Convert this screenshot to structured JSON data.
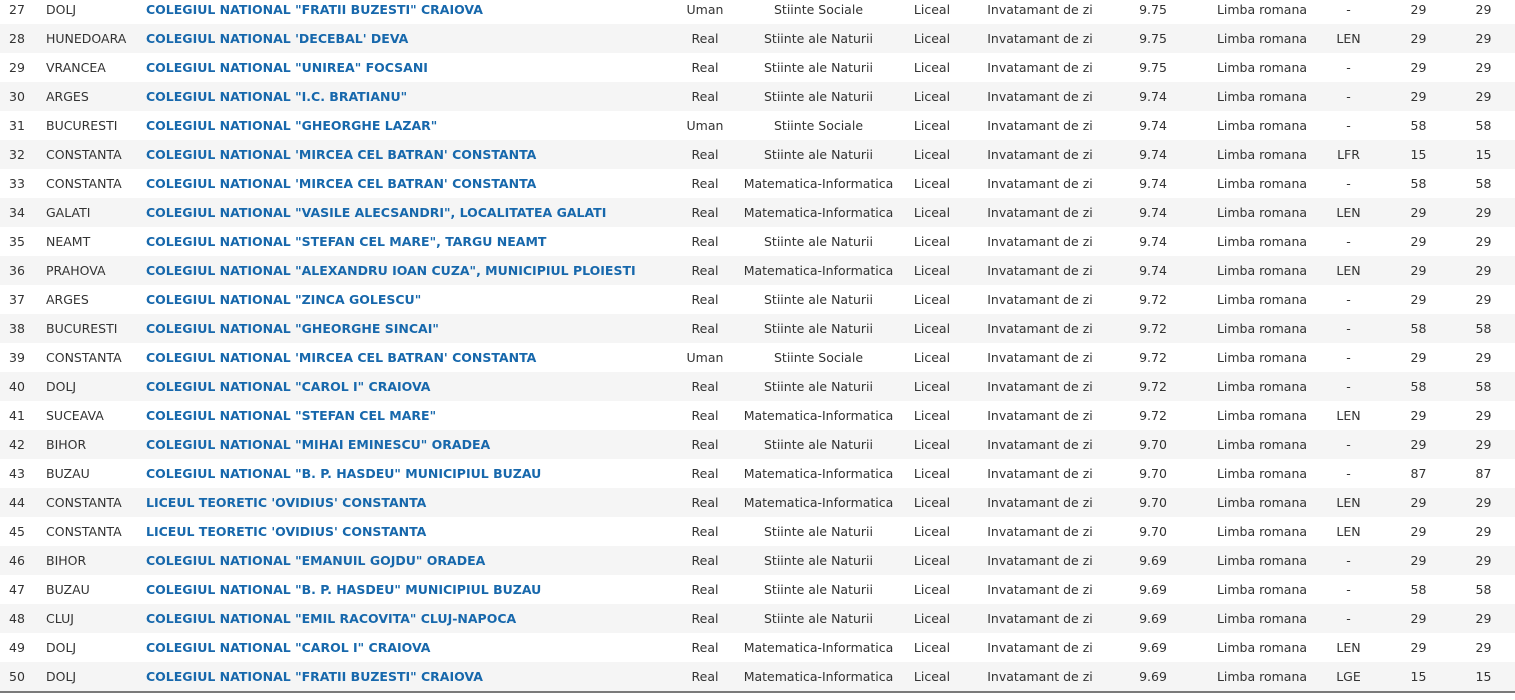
{
  "colors": {
    "link_blue": "#1768ac",
    "row_stripe": "#f5f5f5",
    "body_text": "#333333",
    "bottom_border": "#7a7a7a"
  },
  "table": {
    "rows": [
      {
        "rank": "27",
        "county": "DOLJ",
        "school": "COLEGIUL NATIONAL \"FRATII BUZESTI\" CRAIOVA",
        "profile": "Uman",
        "specialization": "Stiinte Sociale",
        "level": "Liceal",
        "form": "Invatamant de zi",
        "grade": "9.75",
        "language": "Limba romana",
        "bilingual": "-",
        "seats": "29",
        "admitted": "29"
      },
      {
        "rank": "28",
        "county": "HUNEDOARA",
        "school": "COLEGIUL NATIONAL 'DECEBAL' DEVA",
        "profile": "Real",
        "specialization": "Stiinte ale Naturii",
        "level": "Liceal",
        "form": "Invatamant de zi",
        "grade": "9.75",
        "language": "Limba romana",
        "bilingual": "LEN",
        "seats": "29",
        "admitted": "29"
      },
      {
        "rank": "29",
        "county": "VRANCEA",
        "school": "COLEGIUL NATIONAL \"UNIREA\" FOCSANI",
        "profile": "Real",
        "specialization": "Stiinte ale Naturii",
        "level": "Liceal",
        "form": "Invatamant de zi",
        "grade": "9.75",
        "language": "Limba romana",
        "bilingual": "-",
        "seats": "29",
        "admitted": "29"
      },
      {
        "rank": "30",
        "county": "ARGES",
        "school": "COLEGIUL NATIONAL \"I.C. BRATIANU\"",
        "profile": "Real",
        "specialization": "Stiinte ale Naturii",
        "level": "Liceal",
        "form": "Invatamant de zi",
        "grade": "9.74",
        "language": "Limba romana",
        "bilingual": "-",
        "seats": "29",
        "admitted": "29"
      },
      {
        "rank": "31",
        "county": "BUCURESTI",
        "school": "COLEGIUL NATIONAL \"GHEORGHE LAZAR\"",
        "profile": "Uman",
        "specialization": "Stiinte Sociale",
        "level": "Liceal",
        "form": "Invatamant de zi",
        "grade": "9.74",
        "language": "Limba romana",
        "bilingual": "-",
        "seats": "58",
        "admitted": "58"
      },
      {
        "rank": "32",
        "county": "CONSTANTA",
        "school": "COLEGIUL NATIONAL 'MIRCEA CEL BATRAN' CONSTANTA",
        "profile": "Real",
        "specialization": "Stiinte ale Naturii",
        "level": "Liceal",
        "form": "Invatamant de zi",
        "grade": "9.74",
        "language": "Limba romana",
        "bilingual": "LFR",
        "seats": "15",
        "admitted": "15"
      },
      {
        "rank": "33",
        "county": "CONSTANTA",
        "school": "COLEGIUL NATIONAL 'MIRCEA CEL BATRAN' CONSTANTA",
        "profile": "Real",
        "specialization": "Matematica-Informatica",
        "level": "Liceal",
        "form": "Invatamant de zi",
        "grade": "9.74",
        "language": "Limba romana",
        "bilingual": "-",
        "seats": "58",
        "admitted": "58"
      },
      {
        "rank": "34",
        "county": "GALATI",
        "school": "COLEGIUL NATIONAL \"VASILE ALECSANDRI\", LOCALITATEA GALATI",
        "profile": "Real",
        "specialization": "Matematica-Informatica",
        "level": "Liceal",
        "form": "Invatamant de zi",
        "grade": "9.74",
        "language": "Limba romana",
        "bilingual": "LEN",
        "seats": "29",
        "admitted": "29"
      },
      {
        "rank": "35",
        "county": "NEAMT",
        "school": "COLEGIUL NATIONAL \"STEFAN CEL MARE\", TARGU NEAMT",
        "profile": "Real",
        "specialization": "Stiinte ale Naturii",
        "level": "Liceal",
        "form": "Invatamant de zi",
        "grade": "9.74",
        "language": "Limba romana",
        "bilingual": "-",
        "seats": "29",
        "admitted": "29"
      },
      {
        "rank": "36",
        "county": "PRAHOVA",
        "school": "COLEGIUL NATIONAL \"ALEXANDRU IOAN CUZA\", MUNICIPIUL PLOIESTI",
        "profile": "Real",
        "specialization": "Matematica-Informatica",
        "level": "Liceal",
        "form": "Invatamant de zi",
        "grade": "9.74",
        "language": "Limba romana",
        "bilingual": "LEN",
        "seats": "29",
        "admitted": "29"
      },
      {
        "rank": "37",
        "county": "ARGES",
        "school": "COLEGIUL NATIONAL \"ZINCA GOLESCU\"",
        "profile": "Real",
        "specialization": "Stiinte ale Naturii",
        "level": "Liceal",
        "form": "Invatamant de zi",
        "grade": "9.72",
        "language": "Limba romana",
        "bilingual": "-",
        "seats": "29",
        "admitted": "29"
      },
      {
        "rank": "38",
        "county": "BUCURESTI",
        "school": "COLEGIUL NATIONAL \"GHEORGHE SINCAI\"",
        "profile": "Real",
        "specialization": "Stiinte ale Naturii",
        "level": "Liceal",
        "form": "Invatamant de zi",
        "grade": "9.72",
        "language": "Limba romana",
        "bilingual": "-",
        "seats": "58",
        "admitted": "58"
      },
      {
        "rank": "39",
        "county": "CONSTANTA",
        "school": "COLEGIUL NATIONAL 'MIRCEA CEL BATRAN' CONSTANTA",
        "profile": "Uman",
        "specialization": "Stiinte Sociale",
        "level": "Liceal",
        "form": "Invatamant de zi",
        "grade": "9.72",
        "language": "Limba romana",
        "bilingual": "-",
        "seats": "29",
        "admitted": "29"
      },
      {
        "rank": "40",
        "county": "DOLJ",
        "school": "COLEGIUL NATIONAL \"CAROL I\" CRAIOVA",
        "profile": "Real",
        "specialization": "Stiinte ale Naturii",
        "level": "Liceal",
        "form": "Invatamant de zi",
        "grade": "9.72",
        "language": "Limba romana",
        "bilingual": "-",
        "seats": "58",
        "admitted": "58"
      },
      {
        "rank": "41",
        "county": "SUCEAVA",
        "school": "COLEGIUL NATIONAL \"STEFAN CEL MARE\"",
        "profile": "Real",
        "specialization": "Matematica-Informatica",
        "level": "Liceal",
        "form": "Invatamant de zi",
        "grade": "9.72",
        "language": "Limba romana",
        "bilingual": "LEN",
        "seats": "29",
        "admitted": "29"
      },
      {
        "rank": "42",
        "county": "BIHOR",
        "school": "COLEGIUL NATIONAL \"MIHAI EMINESCU\" ORADEA",
        "profile": "Real",
        "specialization": "Stiinte ale Naturii",
        "level": "Liceal",
        "form": "Invatamant de zi",
        "grade": "9.70",
        "language": "Limba romana",
        "bilingual": "-",
        "seats": "29",
        "admitted": "29"
      },
      {
        "rank": "43",
        "county": "BUZAU",
        "school": "COLEGIUL NATIONAL \"B. P. HASDEU\" MUNICIPIUL BUZAU",
        "profile": "Real",
        "specialization": "Matematica-Informatica",
        "level": "Liceal",
        "form": "Invatamant de zi",
        "grade": "9.70",
        "language": "Limba romana",
        "bilingual": "-",
        "seats": "87",
        "admitted": "87"
      },
      {
        "rank": "44",
        "county": "CONSTANTA",
        "school": "LICEUL TEORETIC 'OVIDIUS' CONSTANTA",
        "profile": "Real",
        "specialization": "Matematica-Informatica",
        "level": "Liceal",
        "form": "Invatamant de zi",
        "grade": "9.70",
        "language": "Limba romana",
        "bilingual": "LEN",
        "seats": "29",
        "admitted": "29"
      },
      {
        "rank": "45",
        "county": "CONSTANTA",
        "school": "LICEUL TEORETIC 'OVIDIUS' CONSTANTA",
        "profile": "Real",
        "specialization": "Stiinte ale Naturii",
        "level": "Liceal",
        "form": "Invatamant de zi",
        "grade": "9.70",
        "language": "Limba romana",
        "bilingual": "LEN",
        "seats": "29",
        "admitted": "29"
      },
      {
        "rank": "46",
        "county": "BIHOR",
        "school": "COLEGIUL NATIONAL \"EMANUIL GOJDU\" ORADEA",
        "profile": "Real",
        "specialization": "Stiinte ale Naturii",
        "level": "Liceal",
        "form": "Invatamant de zi",
        "grade": "9.69",
        "language": "Limba romana",
        "bilingual": "-",
        "seats": "29",
        "admitted": "29"
      },
      {
        "rank": "47",
        "county": "BUZAU",
        "school": "COLEGIUL NATIONAL \"B. P. HASDEU\" MUNICIPIUL BUZAU",
        "profile": "Real",
        "specialization": "Stiinte ale Naturii",
        "level": "Liceal",
        "form": "Invatamant de zi",
        "grade": "9.69",
        "language": "Limba romana",
        "bilingual": "-",
        "seats": "58",
        "admitted": "58"
      },
      {
        "rank": "48",
        "county": "CLUJ",
        "school": "COLEGIUL NATIONAL \"EMIL RACOVITA\" CLUJ-NAPOCA",
        "profile": "Real",
        "specialization": "Stiinte ale Naturii",
        "level": "Liceal",
        "form": "Invatamant de zi",
        "grade": "9.69",
        "language": "Limba romana",
        "bilingual": "-",
        "seats": "29",
        "admitted": "29"
      },
      {
        "rank": "49",
        "county": "DOLJ",
        "school": "COLEGIUL NATIONAL \"CAROL I\" CRAIOVA",
        "profile": "Real",
        "specialization": "Matematica-Informatica",
        "level": "Liceal",
        "form": "Invatamant de zi",
        "grade": "9.69",
        "language": "Limba romana",
        "bilingual": "LEN",
        "seats": "29",
        "admitted": "29"
      },
      {
        "rank": "50",
        "county": "DOLJ",
        "school": "COLEGIUL NATIONAL \"FRATII BUZESTI\" CRAIOVA",
        "profile": "Real",
        "specialization": "Matematica-Informatica",
        "level": "Liceal",
        "form": "Invatamant de zi",
        "grade": "9.69",
        "language": "Limba romana",
        "bilingual": "LGE",
        "seats": "15",
        "admitted": "15"
      }
    ]
  }
}
